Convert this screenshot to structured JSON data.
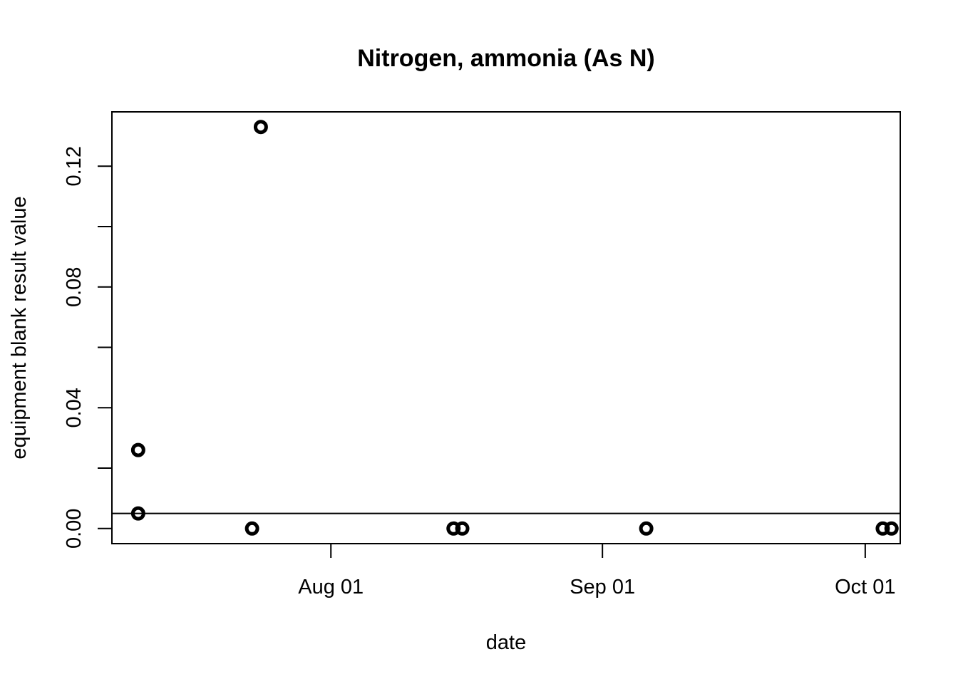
{
  "chart_data": {
    "type": "scatter",
    "title": "Nitrogen, ammonia (As N)",
    "xlabel": "date",
    "ylabel": "equipment blank result value",
    "x_axis_type": "date",
    "xlim": [
      "2023-07-07",
      "2023-10-05"
    ],
    "ylim": [
      -0.005,
      0.138
    ],
    "x_ticks": [
      {
        "date": "2023-08-01",
        "label": "Aug 01"
      },
      {
        "date": "2023-09-01",
        "label": "Sep 01"
      },
      {
        "date": "2023-10-01",
        "label": "Oct 01"
      }
    ],
    "y_ticks": [
      {
        "value": 0.0,
        "label": "0.00"
      },
      {
        "value": 0.02,
        "label": ""
      },
      {
        "value": 0.04,
        "label": "0.04"
      },
      {
        "value": 0.06,
        "label": ""
      },
      {
        "value": 0.08,
        "label": "0.08"
      },
      {
        "value": 0.1,
        "label": ""
      },
      {
        "value": 0.12,
        "label": "0.12"
      }
    ],
    "reference_line": {
      "y": 0.005
    },
    "grid": false,
    "marker": "open-circle",
    "color": "#000000",
    "points": [
      {
        "x": "2023-07-10",
        "y": 0.026
      },
      {
        "x": "2023-07-10",
        "y": 0.005
      },
      {
        "x": "2023-07-23",
        "y": 0.0
      },
      {
        "x": "2023-07-24",
        "y": 0.133
      },
      {
        "x": "2023-08-15",
        "y": 0.0
      },
      {
        "x": "2023-08-16",
        "y": 0.0
      },
      {
        "x": "2023-09-06",
        "y": 0.0
      },
      {
        "x": "2023-10-03",
        "y": 0.0
      },
      {
        "x": "2023-10-04",
        "y": 0.0
      }
    ]
  }
}
